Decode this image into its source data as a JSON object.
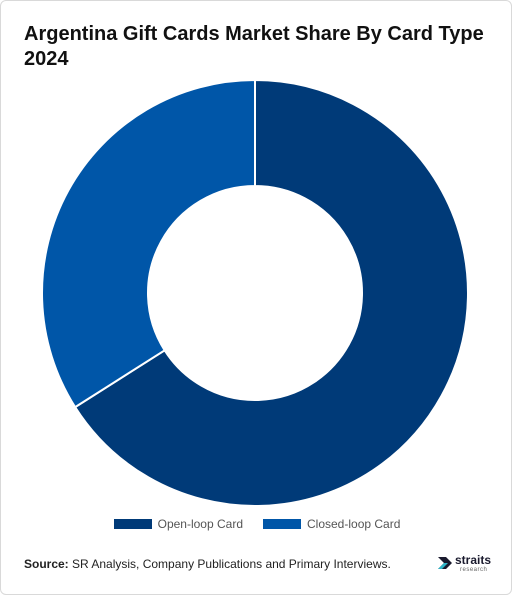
{
  "title": "Argentina Gift Cards Market Share By Card Type 2024",
  "chart_data": {
    "type": "pie",
    "donut": true,
    "categories": [
      "Open-loop Card",
      "Closed-loop Card"
    ],
    "values": [
      66,
      34
    ],
    "colors": [
      "#003a78",
      "#0056a8"
    ],
    "legend": "bottom"
  },
  "source": {
    "label": "Source:",
    "text": " SR Analysis, Company Publications and Primary Interviews."
  },
  "logo": {
    "name": "straits",
    "sub": "research"
  }
}
